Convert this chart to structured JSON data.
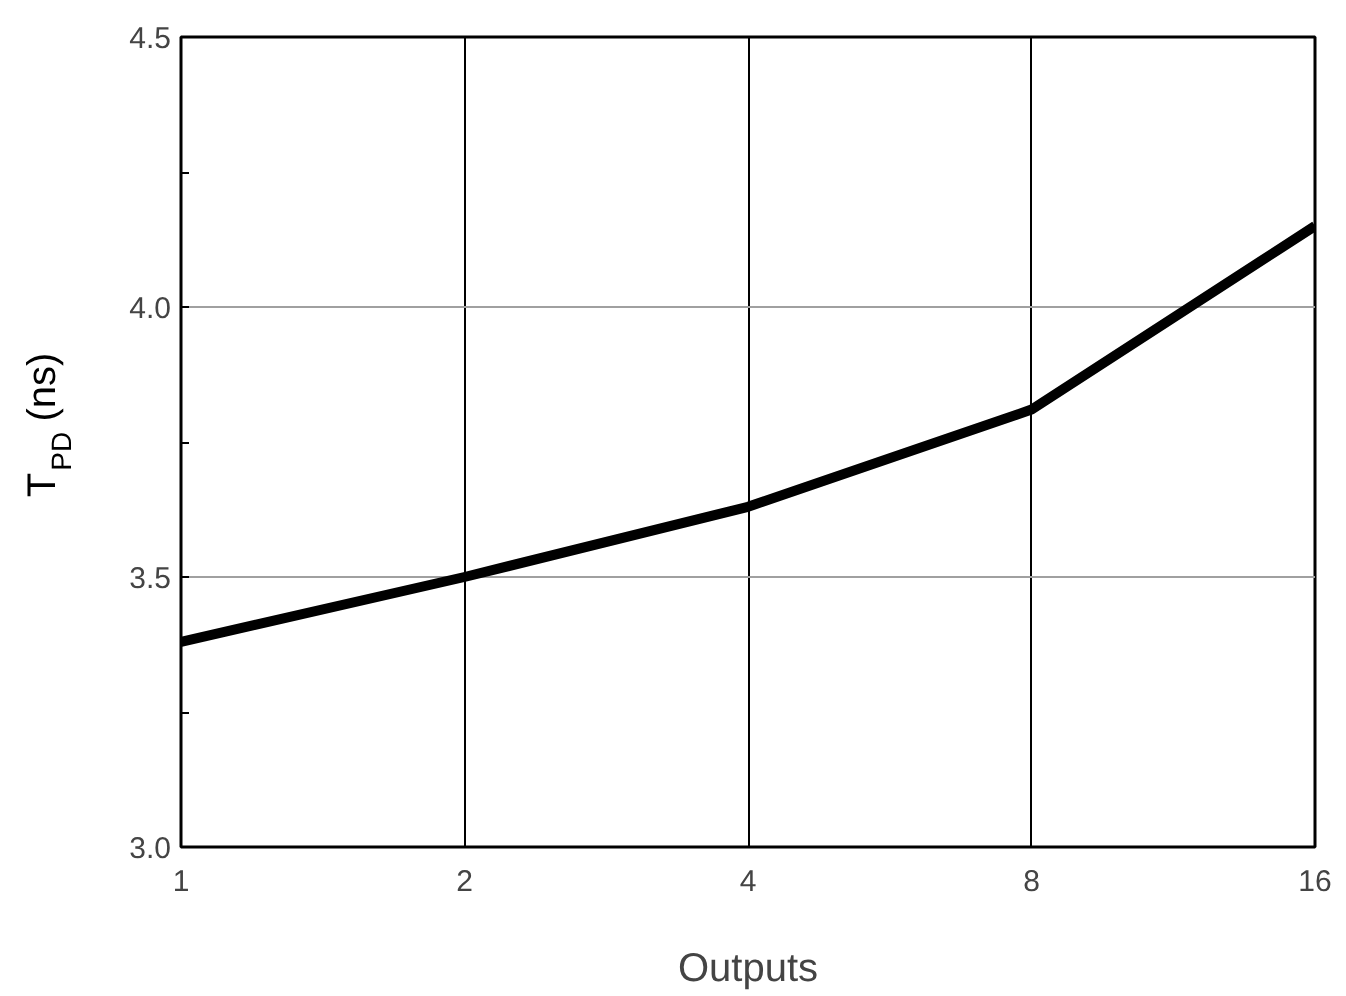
{
  "chart_data": {
    "type": "line",
    "xlabel": "Outputs",
    "ylabel": "T$_{PD}$ (ns)",
    "categories": [
      "1",
      "2",
      "4",
      "8",
      "16"
    ],
    "series": [
      {
        "color": "#000000",
        "values": [
          3.38,
          3.5,
          3.63,
          3.81,
          4.15
        ]
      }
    ],
    "ylim": [
      3.0,
      4.5
    ],
    "yticks": [
      {
        "value": 3.0,
        "label": "3.0"
      },
      {
        "value": 3.25,
        "label": null
      },
      3.5,
      {
        "value": 3.75,
        "label": null
      },
      {
        "value": 4.0,
        "label": "4.0"
      },
      {
        "value": 4.25,
        "label": null
      },
      4.5
    ],
    "grid": true,
    "marker": "none",
    "line_style": "solid"
  }
}
